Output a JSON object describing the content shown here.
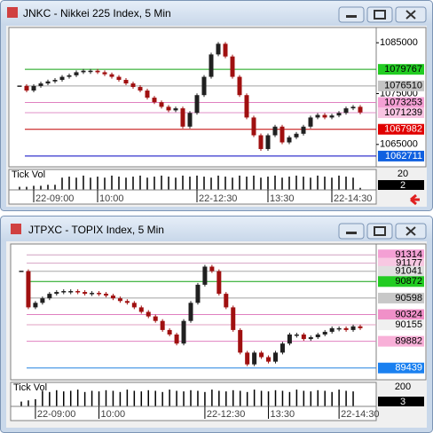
{
  "chart_data": [
    {
      "type": "candlestick",
      "title": "JNKC - Nikkei 225 Index, 5 Min",
      "categories": [
        null,
        null,
        "22-09:00",
        null,
        null,
        null,
        null,
        null,
        null,
        null,
        null,
        "10:00",
        null,
        null,
        null,
        null,
        null,
        null,
        null,
        null,
        null,
        null,
        null,
        null,
        null,
        "22-12:30",
        null,
        null,
        null,
        null,
        null,
        null,
        null,
        null,
        null,
        "13:30",
        null,
        null,
        null,
        null,
        null,
        null,
        null,
        null,
        "22-14:30",
        null,
        null,
        null,
        null
      ],
      "close": [
        1076500,
        1075600,
        1076500,
        1077000,
        1077400,
        1077700,
        1078300,
        1078600,
        1079200,
        1079500,
        1079500,
        1079200,
        1078800,
        1078300,
        1077700,
        1077000,
        1076300,
        1075600,
        1074200,
        1073300,
        1072400,
        1071700,
        1072100,
        1068500,
        1071200,
        1074700,
        1078300,
        1082700,
        1084800,
        1082300,
        1078300,
        1074700,
        1070300,
        1066800,
        1064100,
        1066800,
        1068500,
        1065400,
        1066400,
        1067100,
        1068500,
        1070300,
        1070800,
        1070300,
        1070700,
        1071200,
        1072100,
        1072400,
        1071300
      ],
      "up_color": "#202020",
      "down_color": "#a01010",
      "ylim": [
        1060600,
        1088000
      ],
      "yticks": [
        1065000,
        1075000,
        1085000
      ],
      "levels": [
        {
          "value": 1079767,
          "color": "#10a010",
          "bg": "#22cc22",
          "text_color": "#000000"
        },
        {
          "value": 1076510,
          "color": "#a0a0a0",
          "bg": "#c4c4c4",
          "text_color": "#000000"
        },
        {
          "value": 1073253,
          "color": "#e080c0",
          "bg": "#f4a0d4",
          "text_color": "#000000"
        },
        {
          "value": 1071239,
          "color": "#e090c8",
          "bg": "#f8c4e2",
          "text_color": "#000000"
        },
        {
          "value": 1067982,
          "color": "#c00000",
          "bg": "#e00000",
          "text_color": "#ffffff"
        },
        {
          "value": 1062711,
          "color": "#0000c0",
          "bg": "#1060e0",
          "text_color": "#ffffff"
        }
      ],
      "volume_label": "Tick Vol",
      "vlim": [
        0,
        20
      ],
      "vticks": [
        20
      ],
      "volume": [
        3,
        3,
        4,
        4,
        5,
        5,
        12,
        13,
        12,
        14,
        12,
        13,
        12,
        14,
        13,
        12,
        13,
        14,
        12,
        13,
        14,
        13,
        12,
        14,
        13,
        14,
        13,
        12,
        14,
        13,
        12,
        14,
        13,
        14,
        12,
        13,
        14,
        12,
        13,
        14,
        13,
        12,
        14,
        13,
        12,
        14,
        13,
        12,
        2
      ]
    },
    {
      "type": "candlestick",
      "title": "JTPXC - TOPIX Index, 5 Min",
      "categories": [
        null,
        null,
        "22-09:00",
        null,
        null,
        null,
        null,
        null,
        null,
        null,
        null,
        "10:00",
        null,
        null,
        null,
        null,
        null,
        null,
        null,
        null,
        null,
        null,
        null,
        null,
        null,
        null,
        "22-12:30",
        null,
        null,
        null,
        null,
        null,
        null,
        null,
        null,
        "13:30",
        null,
        null,
        null,
        null,
        null,
        null,
        null,
        null,
        null,
        "22-14:30",
        null,
        null,
        null
      ],
      "close": [
        91044,
        90444,
        90519,
        90594,
        90669,
        90699,
        90714,
        90714,
        90699,
        90669,
        90684,
        90669,
        90639,
        90594,
        90549,
        90519,
        90444,
        90369,
        90294,
        90219,
        90069,
        89994,
        89844,
        90219,
        90519,
        90819,
        91119,
        91044,
        90669,
        90444,
        90069,
        89694,
        89499,
        89694,
        89619,
        89544,
        89694,
        89844,
        89994,
        89994,
        89919,
        89949,
        89994,
        90039,
        90099,
        90099,
        90069,
        90129,
        90099
      ],
      "up_color": "#202020",
      "down_color": "#a01010",
      "ylim": [
        89244,
        91494
      ],
      "yticks": [],
      "levels": [
        {
          "value": 91314,
          "color": "#d0a0c0",
          "bg": "#f4a0d4",
          "text_color": "#000000"
        },
        {
          "value": 91177,
          "color": "#d8a8c8",
          "bg": "#f8c8e2",
          "text_color": "#000000"
        },
        {
          "value": 91041,
          "color": "#a8a8a8",
          "bg": "#e0e0e0",
          "text_color": "#000000"
        },
        {
          "value": 90872,
          "color": "#10a010",
          "bg": "#22cc22",
          "text_color": "#000000"
        },
        {
          "value": 90598,
          "color": "#a0a0a0",
          "bg": "#c8c8c8",
          "text_color": "#000000"
        },
        {
          "value": 90324,
          "color": "#e080c0",
          "bg": "#f090c8",
          "text_color": "#000000"
        },
        {
          "value": 90155,
          "color": "#e0a0c0",
          "bg": "#f0f0f0",
          "text_color": "#000000"
        },
        {
          "value": 89882,
          "color": "#e080c0",
          "bg": "#f8b0d8",
          "text_color": "#000000"
        },
        {
          "value": 89439,
          "color": "#2080e0",
          "bg": "#1a80f0",
          "text_color": "#ffffff"
        }
      ],
      "volume_label": "Tick Vol",
      "vlim": [
        0,
        200
      ],
      "vticks": [
        200
      ],
      "volume": [
        40,
        50,
        60,
        130,
        120,
        135,
        125,
        130,
        140,
        120,
        130,
        125,
        135,
        130,
        120,
        140,
        130,
        125,
        135,
        130,
        120,
        140,
        130,
        125,
        135,
        130,
        120,
        140,
        130,
        125,
        135,
        130,
        120,
        140,
        130,
        125,
        135,
        130,
        120,
        140,
        130,
        125,
        135,
        130,
        120,
        140,
        130,
        125,
        3
      ]
    }
  ]
}
